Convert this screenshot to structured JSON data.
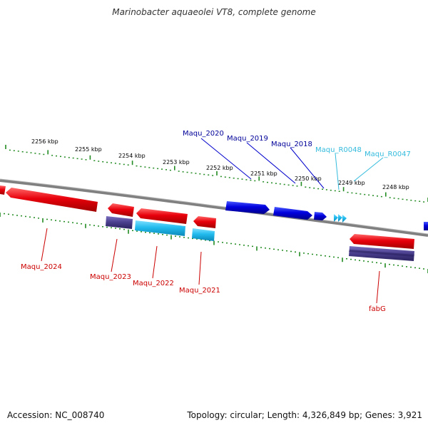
{
  "title": "Marinobacter aquaeolei VT8, complete genome",
  "footer": {
    "accession": "Accession: NC_008740",
    "summary": "Topology: circular; Length: 4,326,849 bp; Genes: 3,921"
  },
  "colors": {
    "backbone": "#808080",
    "tick": "#228b22",
    "tick_label": "#000000",
    "red_gene": "#e8000b",
    "blue_gene": "#0000dd",
    "cyan_gene": "#22bbee",
    "navy_gene": "#483d8b",
    "label_red": "#cc0000",
    "label_blue": "#000099",
    "label_cyan": "#33bbdd"
  },
  "scale_labels": [
    "2256 kbp",
    "2255 kbp",
    "2254 kbp",
    "2253 kbp",
    "2252 kbp",
    "2251 kbp",
    "2250 kbp",
    "2249 kbp",
    "2248 kbp"
  ],
  "top_gene_labels": [
    "Maqu_2020",
    "Maqu_2019",
    "Maqu_2018",
    "Maqu_R0048",
    "Maqu_R0047"
  ],
  "bottom_gene_labels": [
    "Maqu_2024",
    "Maqu_2023",
    "Maqu_2022",
    "Maqu_2021",
    "fabG"
  ]
}
